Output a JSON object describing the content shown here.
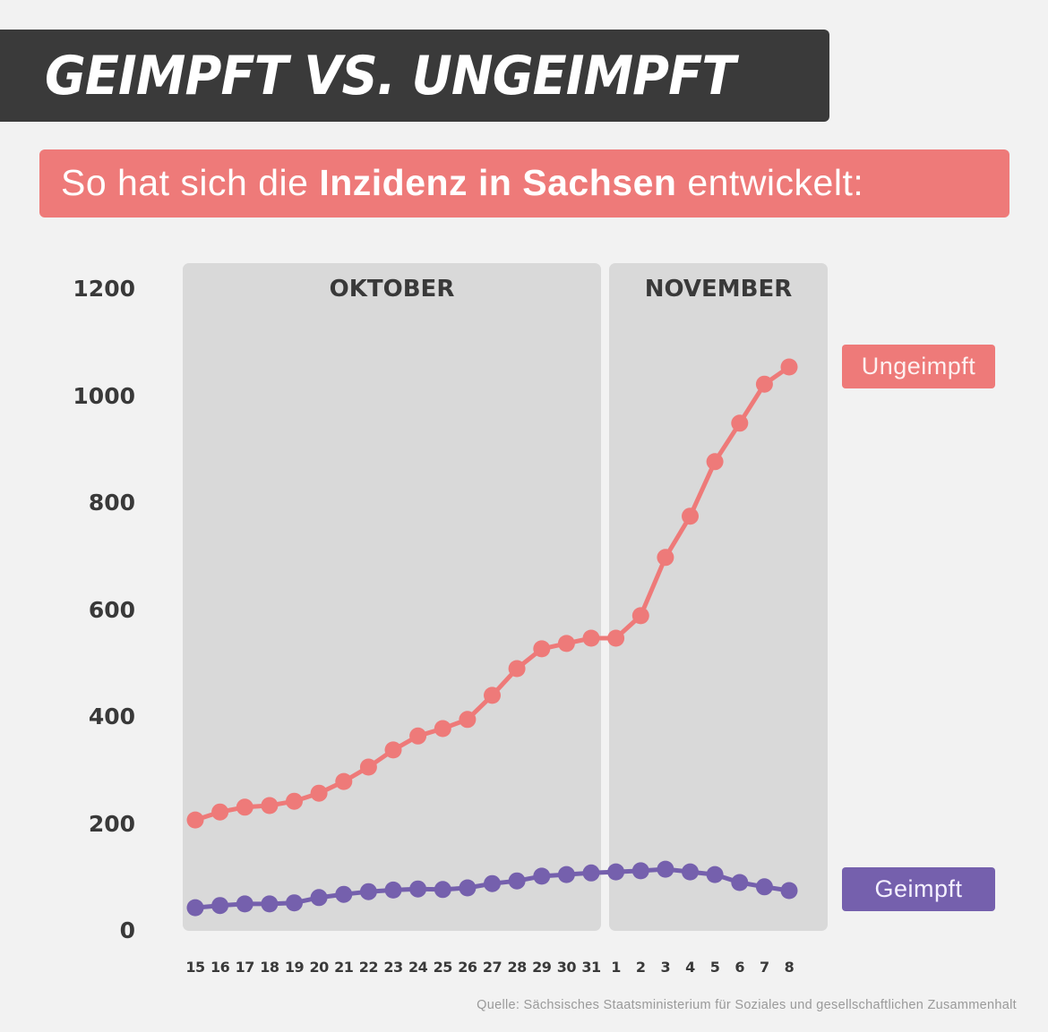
{
  "header": {
    "title": "GEIMPFT VS. UNGEIMPFT",
    "subtitle_pre": "So hat sich die ",
    "subtitle_bold": "Inzidenz in Sachsen",
    "subtitle_post": " entwickelt:"
  },
  "colors": {
    "ungeimpft": "#ee7a79",
    "geimpft": "#7560ad",
    "title_bg": "#3a3a3a",
    "panel_bg": "#d9d9d9"
  },
  "chart_data": {
    "type": "line",
    "title": "GEIMPFT VS. UNGEIMPFT",
    "subtitle": "So hat sich die Inzidenz in Sachsen entwickelt:",
    "xlabel": "",
    "ylabel": "",
    "ylim": [
      0,
      1200
    ],
    "yticks": [
      "0",
      "200",
      "400",
      "600",
      "800",
      "1000",
      "1200"
    ],
    "months": [
      {
        "label": "OKTOBER",
        "days": 17
      },
      {
        "label": "NOVEMBER",
        "days": 8
      }
    ],
    "categories": [
      "15",
      "16",
      "17",
      "18",
      "19",
      "20",
      "21",
      "22",
      "23",
      "24",
      "25",
      "26",
      "27",
      "28",
      "29",
      "30",
      "31",
      "1",
      "2",
      "3",
      "4",
      "5",
      "6",
      "7",
      "8"
    ],
    "series": [
      {
        "name": "Ungeimpft",
        "color": "#ee7a79",
        "values": [
          209,
          224,
          233,
          236,
          244,
          259,
          281,
          308,
          340,
          366,
          380,
          397,
          442,
          492,
          529,
          539,
          549,
          549,
          591,
          700,
          777,
          879,
          951,
          1024,
          1056
        ]
      },
      {
        "name": "Geimpft",
        "color": "#7560ad",
        "values": [
          45,
          49,
          52,
          52,
          54,
          64,
          70,
          75,
          78,
          80,
          79,
          82,
          90,
          95,
          104,
          107,
          110,
          112,
          114,
          117,
          112,
          107,
          92,
          84,
          77
        ]
      }
    ],
    "legend": [
      "Ungeimpft",
      "Geimpft"
    ],
    "grid": false
  },
  "source": "Quelle: Sächsisches Staatsministerium für Soziales und gesellschaftlichen Zusammenhalt"
}
